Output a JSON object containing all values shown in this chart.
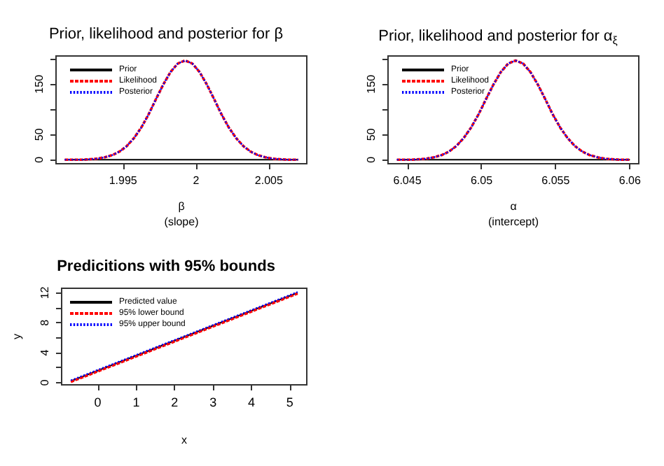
{
  "chart_data": [
    {
      "type": "line",
      "title": "Prior, likelihood and posterior for β",
      "xlabel": "β\n(slope)",
      "xlim": [
        1.9904,
        2.0076
      ],
      "ylim": [
        -8,
        206
      ],
      "xticks": [
        1.995,
        2.0,
        2.005
      ],
      "yticks": [
        0,
        50,
        {
          "value": 100,
          "label": null
        },
        150,
        {
          "value": 200,
          "label": null
        }
      ],
      "legend": "top left",
      "grid": false,
      "series": [
        {
          "name": "Prior",
          "color": "#000000",
          "line_style": "solid",
          "x": [
            1.991,
            2.007
          ],
          "values": [
            0,
            0
          ]
        },
        {
          "name": "Likelihood",
          "color": "#ff0000",
          "line_style": "dashed",
          "x": [
            1.991,
            1.99225,
            1.99275,
            1.99325,
            1.99375,
            1.99425,
            1.99475,
            1.99525,
            1.99575,
            1.99625,
            1.99675,
            1.99725,
            1.99775,
            1.99825,
            1.99875,
            1.99925,
            1.99975,
            2.00025,
            2.00075,
            2.00125,
            2.00175,
            2.00225,
            2.00275,
            2.00325,
            2.00375,
            2.00425,
            2.00475,
            2.00525,
            2.00575,
            2.00625,
            2.007
          ],
          "values": [
            0,
            0,
            1,
            2,
            5,
            9,
            16,
            27,
            43,
            64,
            90,
            120,
            149,
            174,
            191,
            197,
            191,
            174,
            149,
            120,
            90,
            64,
            43,
            27,
            16,
            9,
            5,
            2,
            1,
            0,
            0
          ]
        },
        {
          "name": "Posterior",
          "color": "#0000ff",
          "line_style": "dotted",
          "x": [
            1.991,
            1.99225,
            1.99275,
            1.99325,
            1.99375,
            1.99425,
            1.99475,
            1.99525,
            1.99575,
            1.99625,
            1.99675,
            1.99725,
            1.99775,
            1.99825,
            1.99875,
            1.99925,
            1.99975,
            2.00025,
            2.00075,
            2.00125,
            2.00175,
            2.00225,
            2.00275,
            2.00325,
            2.00375,
            2.00425,
            2.00475,
            2.00525,
            2.00575,
            2.00625,
            2.007
          ],
          "values": [
            0,
            0,
            1,
            2,
            5,
            9,
            16,
            27,
            43,
            64,
            90,
            120,
            149,
            174,
            191,
            197,
            191,
            174,
            149,
            120,
            90,
            64,
            43,
            27,
            16,
            9,
            5,
            2,
            1,
            0,
            0
          ]
        }
      ]
    },
    {
      "type": "line",
      "title": "Prior, likelihood and posterior for α$_{ξ}$",
      "xlabel": "α\n(intercept)",
      "xlim": [
        6.0437,
        6.0606
      ],
      "ylim": [
        -8,
        206
      ],
      "xticks": [
        6.045,
        6.05,
        6.055,
        6.06
      ],
      "yticks": [
        0,
        50,
        {
          "value": 100,
          "label": null
        },
        150,
        {
          "value": 200,
          "label": null
        }
      ],
      "legend": "top left",
      "grid": false,
      "series": [
        {
          "name": "Prior",
          "color": "#000000",
          "line_style": "solid",
          "x": [
            6.0443,
            6.06
          ],
          "values": [
            0,
            0
          ]
        },
        {
          "name": "Likelihood",
          "color": "#ff0000",
          "line_style": "dashed",
          "x": [
            6.0443,
            6.0453,
            6.0458,
            6.0463,
            6.0468,
            6.0473,
            6.0478,
            6.0483,
            6.0488,
            6.0493,
            6.0498,
            6.0503,
            6.0508,
            6.0513,
            6.0518,
            6.0523,
            6.0528,
            6.0533,
            6.0538,
            6.0543,
            6.0548,
            6.0553,
            6.0558,
            6.0563,
            6.0568,
            6.0573,
            6.0578,
            6.0583,
            6.0588,
            6.0593,
            6.06
          ],
          "values": [
            0,
            0,
            1,
            2,
            5,
            9,
            16,
            27,
            43,
            64,
            90,
            120,
            149,
            174,
            191,
            197,
            191,
            174,
            149,
            120,
            90,
            64,
            43,
            27,
            16,
            9,
            5,
            2,
            1,
            0,
            0
          ]
        },
        {
          "name": "Posterior",
          "color": "#0000ff",
          "line_style": "dotted",
          "x": [
            6.0443,
            6.0453,
            6.0458,
            6.0463,
            6.0468,
            6.0473,
            6.0478,
            6.0483,
            6.0488,
            6.0493,
            6.0498,
            6.0503,
            6.0508,
            6.0513,
            6.0518,
            6.0523,
            6.0528,
            6.0533,
            6.0538,
            6.0543,
            6.0548,
            6.0553,
            6.0558,
            6.0563,
            6.0568,
            6.0573,
            6.0578,
            6.0583,
            6.0588,
            6.0593,
            6.06
          ],
          "values": [
            0,
            0,
            1,
            2,
            5,
            9,
            16,
            27,
            43,
            64,
            90,
            120,
            149,
            174,
            191,
            197,
            191,
            174,
            149,
            120,
            90,
            64,
            43,
            27,
            16,
            9,
            5,
            2,
            1,
            0,
            0
          ]
        }
      ]
    },
    {
      "type": "line",
      "title": "Predicitions with 95% bounds",
      "xlabel": "x",
      "ylabel": "y",
      "xlim": [
        -0.94,
        5.44
      ],
      "ylim": [
        -0.3,
        12.6
      ],
      "xticks": [
        0,
        1,
        2,
        3,
        4,
        5
      ],
      "yticks": [
        0,
        {
          "value": 2,
          "label": null
        },
        4,
        {
          "value": 6,
          "label": null
        },
        8,
        {
          "value": 10,
          "label": null
        },
        12
      ],
      "legend": "top left",
      "grid": false,
      "series": [
        {
          "name": "Predicted value",
          "color": "#000000",
          "line_style": "solid",
          "x": [
            -0.7,
            5.2
          ],
          "values": [
            0.2,
            12.0
          ]
        },
        {
          "name": "95% lower bound",
          "color": "#ff0000",
          "line_style": "dashed",
          "x": [
            -0.7,
            5.2
          ],
          "values": [
            0.1,
            11.9
          ]
        },
        {
          "name": "95% upper bound",
          "color": "#0000ff",
          "line_style": "dotted",
          "x": [
            -0.7,
            5.2
          ],
          "values": [
            0.3,
            12.1
          ]
        }
      ]
    }
  ]
}
